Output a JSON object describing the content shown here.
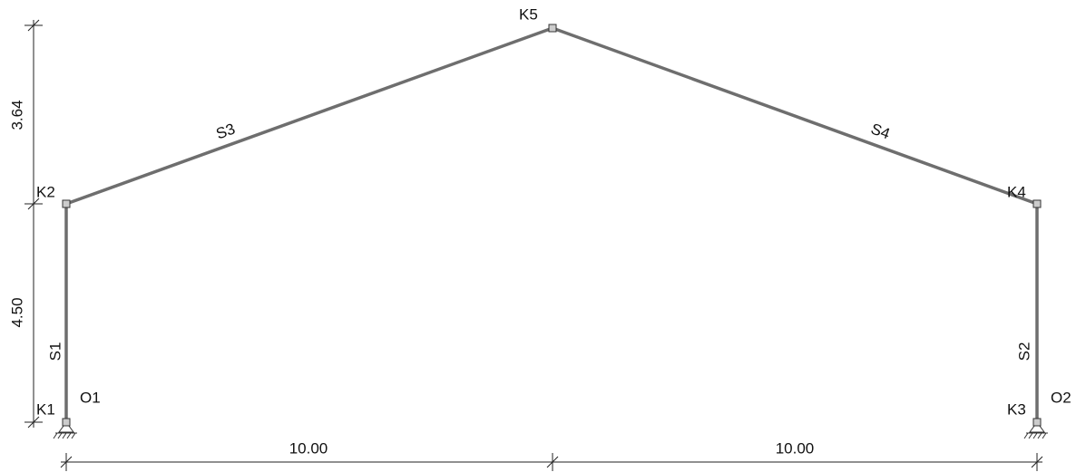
{
  "nodes": [
    {
      "label": "K1"
    },
    {
      "label": "K2"
    },
    {
      "label": "K3"
    },
    {
      "label": "K4"
    },
    {
      "label": "K5"
    }
  ],
  "members": [
    {
      "label": "S1"
    },
    {
      "label": "S2"
    },
    {
      "label": "S3"
    },
    {
      "label": "S4"
    }
  ],
  "supports": [
    {
      "label": "O1"
    },
    {
      "label": "O2"
    }
  ],
  "dimensions": {
    "vertical": [
      "3.64",
      "4.50"
    ],
    "horizontal": [
      "10.00",
      "10.00"
    ]
  }
}
